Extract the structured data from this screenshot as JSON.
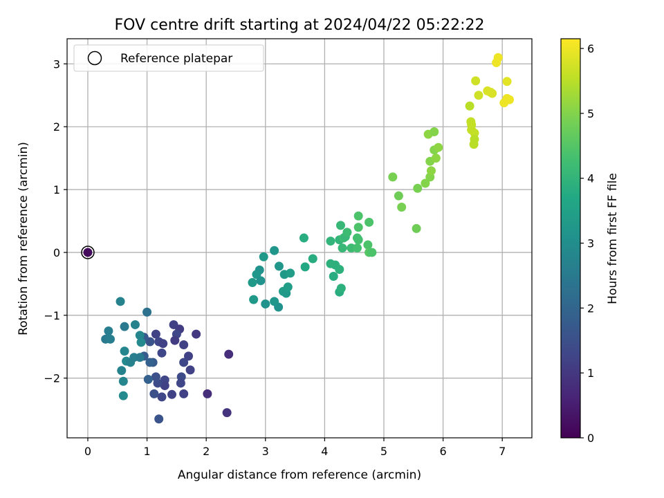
{
  "chart_data": {
    "type": "scatter",
    "title": "FOV centre drift starting at 2024/04/22 05:22:22",
    "xlabel": "Angular distance from reference (arcmin)",
    "ylabel": "Rotation from reference (arcmin)",
    "xlim": [
      -0.35,
      7.5
    ],
    "ylim": [
      -2.95,
      3.4
    ],
    "xticks": [
      0,
      1,
      2,
      3,
      4,
      5,
      6,
      7
    ],
    "yticks": [
      -2,
      -1,
      0,
      1,
      2,
      3
    ],
    "xtick_labels": [
      "0",
      "1",
      "2",
      "3",
      "4",
      "5",
      "6",
      "7"
    ],
    "ytick_labels": [
      "−2",
      "−1",
      "0",
      "1",
      "2",
      "3"
    ],
    "grid": true,
    "legend": {
      "placement": "upper-left",
      "entries": [
        "Reference platepar"
      ]
    },
    "reference_point": {
      "x": 0,
      "y": 0,
      "hours": 0.2
    },
    "colorbar": {
      "label": "Hours from first FF file",
      "range": [
        0,
        6.15
      ],
      "ticks": [
        0,
        1,
        2,
        3,
        4,
        5,
        6
      ],
      "tick_labels": [
        "0",
        "1",
        "2",
        "3",
        "4",
        "5",
        "6"
      ],
      "colormap": "viridis"
    },
    "series": [
      {
        "values": [
          {
            "x": 1.45,
            "y": -1.15,
            "h": 1.2
          },
          {
            "x": 1.55,
            "y": -1.22,
            "h": 1.1
          },
          {
            "x": 1.5,
            "y": -1.3,
            "h": 1.3
          },
          {
            "x": 1.62,
            "y": -1.47,
            "h": 1.2
          },
          {
            "x": 1.83,
            "y": -1.3,
            "h": 1.0
          },
          {
            "x": 1.7,
            "y": -1.65,
            "h": 1.2
          },
          {
            "x": 1.62,
            "y": -1.75,
            "h": 1.3
          },
          {
            "x": 1.73,
            "y": -1.87,
            "h": 1.2
          },
          {
            "x": 1.58,
            "y": -1.98,
            "h": 1.4
          },
          {
            "x": 1.57,
            "y": -2.08,
            "h": 1.3
          },
          {
            "x": 1.62,
            "y": -2.25,
            "h": 1.2
          },
          {
            "x": 1.42,
            "y": -2.26,
            "h": 1.2
          },
          {
            "x": 1.3,
            "y": -2.03,
            "h": 1.3
          },
          {
            "x": 1.3,
            "y": -2.12,
            "h": 1.2
          },
          {
            "x": 1.25,
            "y": -2.3,
            "h": 1.3
          },
          {
            "x": 1.18,
            "y": -2.08,
            "h": 1.4
          },
          {
            "x": 1.15,
            "y": -1.98,
            "h": 1.5
          },
          {
            "x": 1.12,
            "y": -2.25,
            "h": 1.5
          },
          {
            "x": 1.2,
            "y": -2.65,
            "h": 1.6
          },
          {
            "x": 1.15,
            "y": -1.3,
            "h": 1.2
          },
          {
            "x": 1.2,
            "y": -1.42,
            "h": 1.3
          },
          {
            "x": 1.27,
            "y": -1.45,
            "h": 1.2
          },
          {
            "x": 1.25,
            "y": -1.6,
            "h": 1.3
          },
          {
            "x": 1.47,
            "y": -1.4,
            "h": 1.1
          },
          {
            "x": 1.05,
            "y": -1.42,
            "h": 1.6
          },
          {
            "x": 1.1,
            "y": -1.75,
            "h": 1.7
          },
          {
            "x": 0.95,
            "y": -1.65,
            "h": 1.8
          },
          {
            "x": 1.02,
            "y": -2.02,
            "h": 1.9
          },
          {
            "x": 1.05,
            "y": -1.75,
            "h": 1.9
          },
          {
            "x": 0.95,
            "y": -1.35,
            "h": 1.7
          },
          {
            "x": 2.02,
            "y": -2.25,
            "h": 0.8
          },
          {
            "x": 2.35,
            "y": -2.55,
            "h": 0.9
          },
          {
            "x": 2.38,
            "y": -1.62,
            "h": 0.8
          },
          {
            "x": 1.0,
            "y": -0.95,
            "h": 2.3
          },
          {
            "x": 0.55,
            "y": -0.78,
            "h": 2.7
          },
          {
            "x": 0.35,
            "y": -1.25,
            "h": 2.6
          },
          {
            "x": 0.3,
            "y": -1.38,
            "h": 2.5
          },
          {
            "x": 0.38,
            "y": -1.38,
            "h": 2.6
          },
          {
            "x": 0.62,
            "y": -1.18,
            "h": 2.5
          },
          {
            "x": 0.8,
            "y": -1.15,
            "h": 2.7
          },
          {
            "x": 0.88,
            "y": -1.32,
            "h": 2.8
          },
          {
            "x": 0.9,
            "y": -1.43,
            "h": 2.9
          },
          {
            "x": 0.62,
            "y": -1.57,
            "h": 2.8
          },
          {
            "x": 0.65,
            "y": -1.73,
            "h": 2.9
          },
          {
            "x": 0.72,
            "y": -1.75,
            "h": 2.7
          },
          {
            "x": 0.78,
            "y": -1.67,
            "h": 2.6
          },
          {
            "x": 0.88,
            "y": -1.67,
            "h": 2.5
          },
          {
            "x": 0.57,
            "y": -1.88,
            "h": 2.7
          },
          {
            "x": 0.6,
            "y": -2.05,
            "h": 2.8
          },
          {
            "x": 0.6,
            "y": -2.28,
            "h": 2.9
          },
          {
            "x": 3.15,
            "y": 0.03,
            "h": 3.2
          },
          {
            "x": 2.97,
            "y": -0.07,
            "h": 3.3
          },
          {
            "x": 2.9,
            "y": -0.28,
            "h": 3.1
          },
          {
            "x": 2.85,
            "y": -0.35,
            "h": 3.2
          },
          {
            "x": 2.92,
            "y": -0.45,
            "h": 3.1
          },
          {
            "x": 2.78,
            "y": -0.48,
            "h": 3.3
          },
          {
            "x": 2.8,
            "y": -0.75,
            "h": 3.3
          },
          {
            "x": 3.0,
            "y": -0.82,
            "h": 3.1
          },
          {
            "x": 3.15,
            "y": -0.78,
            "h": 3.2
          },
          {
            "x": 3.22,
            "y": -0.87,
            "h": 3.1
          },
          {
            "x": 3.3,
            "y": -0.62,
            "h": 3.4
          },
          {
            "x": 3.35,
            "y": -0.65,
            "h": 3.3
          },
          {
            "x": 3.38,
            "y": -0.55,
            "h": 3.4
          },
          {
            "x": 3.32,
            "y": -0.35,
            "h": 3.3
          },
          {
            "x": 3.42,
            "y": -0.33,
            "h": 3.4
          },
          {
            "x": 3.23,
            "y": -0.22,
            "h": 3.2
          },
          {
            "x": 3.65,
            "y": 0.23,
            "h": 3.8
          },
          {
            "x": 3.67,
            "y": -0.23,
            "h": 3.7
          },
          {
            "x": 3.8,
            "y": -0.1,
            "h": 3.8
          },
          {
            "x": 4.1,
            "y": 0.18,
            "h": 4.0
          },
          {
            "x": 4.1,
            "y": -0.18,
            "h": 3.9
          },
          {
            "x": 4.18,
            "y": -0.2,
            "h": 3.9
          },
          {
            "x": 4.15,
            "y": -0.38,
            "h": 3.8
          },
          {
            "x": 4.25,
            "y": -0.27,
            "h": 3.9
          },
          {
            "x": 4.25,
            "y": -0.63,
            "h": 3.8
          },
          {
            "x": 4.28,
            "y": -0.57,
            "h": 3.9
          },
          {
            "x": 4.25,
            "y": 0.2,
            "h": 4.0
          },
          {
            "x": 4.27,
            "y": 0.43,
            "h": 4.1
          },
          {
            "x": 4.32,
            "y": 0.23,
            "h": 4.2
          },
          {
            "x": 4.35,
            "y": 0.25,
            "h": 4.1
          },
          {
            "x": 4.3,
            "y": 0.07,
            "h": 4.1
          },
          {
            "x": 4.38,
            "y": 0.32,
            "h": 4.2
          },
          {
            "x": 4.45,
            "y": 0.07,
            "h": 4.2
          },
          {
            "x": 4.55,
            "y": 0.23,
            "h": 4.3
          },
          {
            "x": 4.57,
            "y": 0.2,
            "h": 4.3
          },
          {
            "x": 4.55,
            "y": 0.07,
            "h": 4.3
          },
          {
            "x": 4.57,
            "y": 0.4,
            "h": 4.4
          },
          {
            "x": 4.57,
            "y": 0.58,
            "h": 4.4
          },
          {
            "x": 4.75,
            "y": 0.48,
            "h": 4.4
          },
          {
            "x": 4.73,
            "y": 0.12,
            "h": 4.4
          },
          {
            "x": 4.75,
            "y": 0.0,
            "h": 4.5
          },
          {
            "x": 4.8,
            "y": 0.0,
            "h": 4.4
          },
          {
            "x": 5.15,
            "y": 1.2,
            "h": 4.9
          },
          {
            "x": 5.25,
            "y": 0.9,
            "h": 4.8
          },
          {
            "x": 5.3,
            "y": 0.72,
            "h": 4.9
          },
          {
            "x": 5.55,
            "y": 0.38,
            "h": 4.8
          },
          {
            "x": 5.57,
            "y": 1.02,
            "h": 4.9
          },
          {
            "x": 5.7,
            "y": 1.1,
            "h": 5.0
          },
          {
            "x": 5.78,
            "y": 1.2,
            "h": 5.0
          },
          {
            "x": 5.8,
            "y": 1.3,
            "h": 5.1
          },
          {
            "x": 5.78,
            "y": 1.45,
            "h": 5.0
          },
          {
            "x": 5.88,
            "y": 1.5,
            "h": 5.1
          },
          {
            "x": 5.85,
            "y": 1.63,
            "h": 5.0
          },
          {
            "x": 5.92,
            "y": 1.67,
            "h": 5.1
          },
          {
            "x": 5.75,
            "y": 1.88,
            "h": 5.1
          },
          {
            "x": 5.85,
            "y": 1.92,
            "h": 5.0
          },
          {
            "x": 6.45,
            "y": 2.33,
            "h": 5.5
          },
          {
            "x": 6.47,
            "y": 2.08,
            "h": 5.6
          },
          {
            "x": 6.48,
            "y": 2.03,
            "h": 5.6
          },
          {
            "x": 6.48,
            "y": 1.95,
            "h": 5.6
          },
          {
            "x": 6.53,
            "y": 1.9,
            "h": 5.6
          },
          {
            "x": 6.53,
            "y": 1.8,
            "h": 5.5
          },
          {
            "x": 6.52,
            "y": 1.72,
            "h": 5.5
          },
          {
            "x": 6.55,
            "y": 2.73,
            "h": 5.7
          },
          {
            "x": 6.6,
            "y": 2.5,
            "h": 5.7
          },
          {
            "x": 6.75,
            "y": 2.57,
            "h": 5.8
          },
          {
            "x": 6.8,
            "y": 2.55,
            "h": 5.8
          },
          {
            "x": 6.83,
            "y": 2.53,
            "h": 5.8
          },
          {
            "x": 6.9,
            "y": 3.02,
            "h": 6.0
          },
          {
            "x": 6.93,
            "y": 3.1,
            "h": 6.0
          },
          {
            "x": 7.03,
            "y": 2.38,
            "h": 6.0
          },
          {
            "x": 7.08,
            "y": 2.45,
            "h": 6.0
          },
          {
            "x": 7.08,
            "y": 2.72,
            "h": 5.9
          },
          {
            "x": 7.12,
            "y": 2.43,
            "h": 6.0
          }
        ]
      }
    ]
  }
}
